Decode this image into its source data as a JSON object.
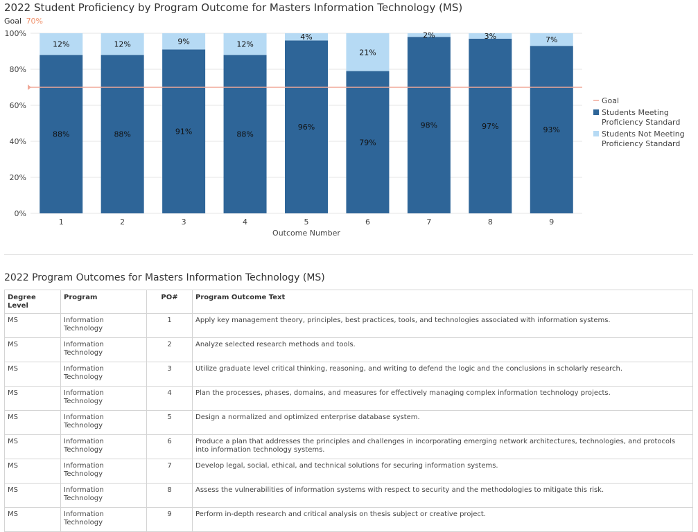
{
  "chart_title": "2022 Student Proficiency by Program Outcome for Masters Information Technology (MS)",
  "goal_caption": {
    "label": "Goal",
    "value": "70%"
  },
  "colors": {
    "meeting": "#2e6598",
    "not_meeting": "#b6daf4",
    "goal": "#f0a898",
    "goal_text": "#f0906a",
    "grid": "#e4e4e4"
  },
  "chart_data": {
    "type": "bar",
    "stacked": true,
    "categories": [
      "1",
      "2",
      "3",
      "4",
      "5",
      "6",
      "7",
      "8",
      "9"
    ],
    "series": [
      {
        "name": "Students Meeting Proficiency Standard",
        "values": [
          88,
          88,
          91,
          88,
          96,
          79,
          98,
          97,
          93
        ],
        "labels": [
          "88%",
          "88%",
          "91%",
          "88%",
          "96%",
          "79%",
          "98%",
          "97%",
          "93%"
        ]
      },
      {
        "name": "Students Not Meeting Proficiency Standard",
        "values": [
          12,
          12,
          9,
          12,
          4,
          21,
          2,
          3,
          7
        ],
        "labels": [
          "12%",
          "12%",
          "9%",
          "12%",
          "4%",
          "21%",
          "2%",
          "3%",
          "7%"
        ]
      }
    ],
    "goal": {
      "name": "Goal",
      "value": 70
    },
    "xlabel": "Outcome Number",
    "ylabel": "",
    "ylim": [
      0,
      100
    ],
    "yticks": [
      "0%",
      "20%",
      "40%",
      "60%",
      "80%",
      "100%"
    ],
    "grid": true,
    "legend_position": "right",
    "legend": [
      "Goal",
      "Students Meeting Proficiency Standard",
      "Students Not Meeting Proficiency Standard"
    ],
    "legend_lines": [
      [
        "Goal"
      ],
      [
        "Students Meeting",
        "Proficiency Standard"
      ],
      [
        "Students Not Meeting",
        "Proficiency Standard"
      ]
    ]
  },
  "table": {
    "title": "2022 Program Outcomes for Masters Information Technology (MS)",
    "headers": [
      "Degree Level",
      "Program",
      "PO#",
      "Program Outcome Text"
    ],
    "rows": [
      {
        "degree": "MS",
        "program": "Information Technology",
        "po": "1",
        "text": "Apply key management theory, principles, best practices, tools, and technologies associated with information systems."
      },
      {
        "degree": "MS",
        "program": "Information Technology",
        "po": "2",
        "text": "Analyze selected research methods and tools."
      },
      {
        "degree": "MS",
        "program": "Information Technology",
        "po": "3",
        "text": "Utilize graduate level critical thinking, reasoning, and writing to defend the logic and the conclusions in scholarly research."
      },
      {
        "degree": "MS",
        "program": "Information Technology",
        "po": "4",
        "text": "Plan the processes, phases, domains, and measures for effectively managing complex information technology projects."
      },
      {
        "degree": "MS",
        "program": "Information Technology",
        "po": "5",
        "text": "Design a normalized and optimized enterprise database system."
      },
      {
        "degree": "MS",
        "program": "Information Technology",
        "po": "6",
        "text": "Produce a plan that addresses the principles and challenges in incorporating emerging network architectures, technologies, and protocols into information technology systems."
      },
      {
        "degree": "MS",
        "program": "Information Technology",
        "po": "7",
        "text": "Develop legal, social, ethical, and technical solutions for securing information systems."
      },
      {
        "degree": "MS",
        "program": "Information Technology",
        "po": "8",
        "text": "Assess the vulnerabilities of information systems with respect to security and the methodologies to mitigate this risk."
      },
      {
        "degree": "MS",
        "program": "Information Technology",
        "po": "9",
        "text": "Perform in-depth research and critical analysis on thesis subject or creative project."
      }
    ]
  }
}
